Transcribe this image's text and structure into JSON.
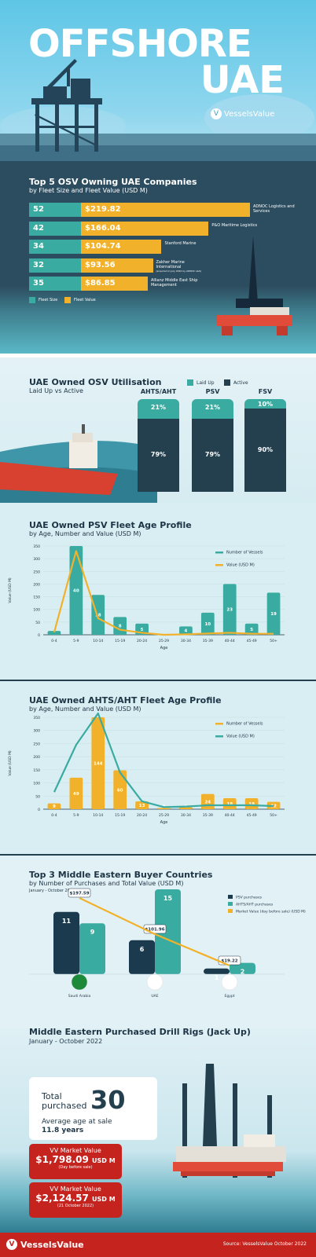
{
  "header": {
    "title_line1": "OFFSHORE",
    "title_line2": "UAE",
    "brand": "VesselsValue"
  },
  "top5": {
    "title": "Top 5 OSV Owning UAE Companies",
    "subtitle": "by Fleet Size and Fleet Value (USD M)",
    "legend": [
      "Fleet Size",
      "Fleet Value"
    ],
    "colors": {
      "size": "#3aaba0",
      "value": "#f2b12a"
    },
    "companies": [
      {
        "name": "ADNOC Logistics and Services",
        "size": "52",
        "value": "$219.82",
        "note": ""
      },
      {
        "name": "P&O Maritime Logistics",
        "size": "42",
        "value": "$166.04",
        "note": ""
      },
      {
        "name": "Stanford Marine",
        "size": "34",
        "value": "$104.74",
        "note": ""
      },
      {
        "name": "Zakher Marine International",
        "size": "32",
        "value": "$93.56",
        "note": "(acquired in July 2022 by ADNOC L&S)"
      },
      {
        "name": "Allianz Middle East Ship Management",
        "size": "35",
        "value": "$86.85",
        "note": ""
      }
    ]
  },
  "util": {
    "title": "UAE Owned OSV Utilisation",
    "subtitle": "Laid Up vs Active",
    "legend": [
      "Laid Up",
      "Active"
    ],
    "colors": {
      "laid": "#3aaba0",
      "active": "#24404f"
    }
  },
  "psv": {
    "title": "UAE Owned PSV Fleet Age Profile",
    "subtitle": "by Age, Number and Value (USD M)"
  },
  "ahts": {
    "title": "UAE Owned AHTS/AHT Fleet Age Profile",
    "subtitle": "by Age, Number and Value (USD M)"
  },
  "buyers": {
    "title": "Top 3 Middle Eastern Buyer Countries",
    "subtitle": "by Number of Purchases and Total Value (USD M)",
    "period": "January - October 2022"
  },
  "rigs": {
    "title": "Middle Eastern Purchased Drill Rigs (Jack Up)",
    "subtitle": "January - October 2022",
    "total_label_1": "Total",
    "total_label_2": "purchased",
    "total": "30",
    "avg_label": "Average age at sale",
    "avg": "11.8 years",
    "mv1_label": "VV Market Value",
    "mv1_value": "$1,798.09",
    "mv1_unit": "USD M",
    "mv1_note": "(Day before sale)",
    "mv2_label": "VV Market Value",
    "mv2_value": "$2,124.57",
    "mv2_unit": "USD M",
    "mv2_note": "(21 October 2022)"
  },
  "footer": {
    "brand": "VesselsValue",
    "source": "Source: VesselsValue October 2022"
  },
  "chart_data": [
    {
      "type": "bar",
      "title": "Top 5 OSV Owning UAE Companies",
      "categories": [
        "ADNOC Logistics and Services",
        "P&O Maritime Logistics",
        "Stanford Marine",
        "Zakher Marine International",
        "Allianz Middle East Ship Management"
      ],
      "series": [
        {
          "name": "Fleet Size",
          "values": [
            52,
            42,
            34,
            32,
            35
          ]
        },
        {
          "name": "Fleet Value",
          "values": [
            219.82,
            166.04,
            104.74,
            93.56,
            86.85
          ]
        }
      ]
    },
    {
      "type": "bar",
      "title": "UAE Owned OSV Utilisation",
      "categories": [
        "AHTS/AHT",
        "PSV",
        "FSV"
      ],
      "series": [
        {
          "name": "Laid Up",
          "values": [
            21,
            21,
            10
          ],
          "labels": [
            "21%",
            "21%",
            "10%"
          ]
        },
        {
          "name": "Active",
          "values": [
            79,
            79,
            90
          ],
          "labels": [
            "79%",
            "79%",
            "90%"
          ]
        }
      ]
    },
    {
      "type": "bar",
      "title": "UAE Owned PSV Fleet Age Profile",
      "xlabel": "Age",
      "ylabel": "Value (USD M)",
      "ylim": [
        0,
        350
      ],
      "yticks": [
        "0",
        "50",
        "100",
        "150",
        "200",
        "250",
        "300",
        "350"
      ],
      "categories": [
        "0-4",
        "5-9",
        "10-14",
        "15-19",
        "20-24",
        "25-29",
        "30-34",
        "35-39",
        "40-44",
        "45-49",
        "50+"
      ],
      "bar_color": "#3aaba0",
      "line_color": "#f2b12a",
      "series": [
        {
          "name": "Number of Vessels",
          "values": [
            2,
            40,
            18,
            8,
            5,
            0,
            4,
            10,
            23,
            5,
            19
          ],
          "bar_heights": [
            15,
            350,
            157,
            70,
            44,
            0,
            33,
            87,
            200,
            44,
            166
          ],
          "labels": [
            "",
            "40",
            "18",
            "8",
            "5",
            "",
            "4",
            "10",
            "23",
            "5",
            "19"
          ]
        },
        {
          "name": "Value (USD M)",
          "values": [
            10,
            330,
            65,
            20,
            8,
            0,
            2,
            5,
            8,
            4,
            4
          ]
        }
      ]
    },
    {
      "type": "bar",
      "title": "UAE Owned AHTS/AHT Fleet Age Profile",
      "xlabel": "Age",
      "ylabel": "Value (USD M)",
      "ylim": [
        0,
        350
      ],
      "yticks": [
        "0",
        "50",
        "100",
        "150",
        "200",
        "250",
        "300",
        "350"
      ],
      "categories": [
        "0-4",
        "5-9",
        "10-14",
        "15-19",
        "20-24",
        "25-29",
        "30-34",
        "35-39",
        "40-44",
        "45-49",
        "50+"
      ],
      "bar_color": "#f2b12a",
      "line_color": "#3aaba0",
      "series": [
        {
          "name": "Number of Vessels",
          "values": [
            9,
            49,
            144,
            60,
            13,
            3,
            4,
            24,
            18,
            18,
            12
          ],
          "bar_heights": [
            22,
            120,
            355,
            148,
            30,
            5,
            8,
            58,
            42,
            42,
            28
          ],
          "labels": [
            "9",
            "49",
            "144",
            "60",
            "13",
            "3",
            "4",
            "24",
            "18",
            "18",
            "12"
          ]
        },
        {
          "name": "Value (USD M)",
          "values": [
            65,
            245,
            365,
            140,
            30,
            8,
            10,
            15,
            15,
            15,
            12
          ]
        }
      ]
    },
    {
      "type": "bar",
      "title": "Top 3 Middle Eastern Buyer Countries",
      "categories": [
        "Saudi Arabia",
        "UAE",
        "Egypt"
      ],
      "series": [
        {
          "name": "PSV purchases",
          "values": [
            11,
            6,
            1
          ],
          "color": "#1c3a4e"
        },
        {
          "name": "AHTS/AHT purchases",
          "values": [
            9,
            15,
            2
          ],
          "color": "#3aaba0"
        },
        {
          "name": "Market Value (day before sale) (USD M)",
          "values": [
            197.59,
            101.96,
            19.22
          ],
          "labels": [
            "$197.59",
            "$101.96",
            "$19.22"
          ],
          "color": "#f2b12a"
        }
      ]
    }
  ]
}
